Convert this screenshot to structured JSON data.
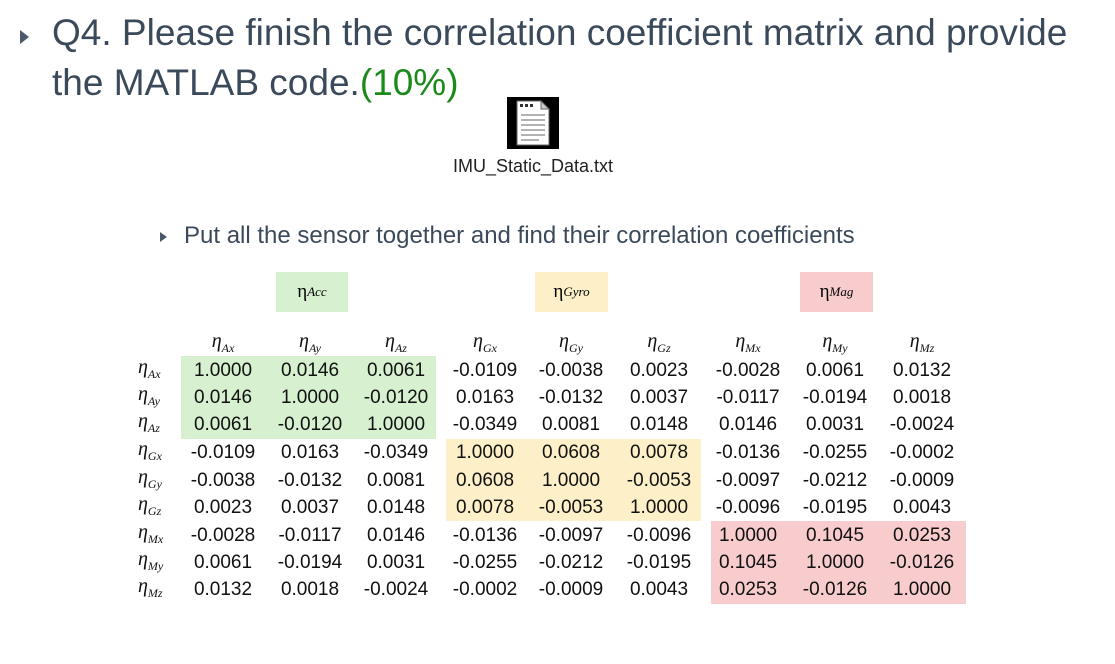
{
  "question": {
    "text": "Q4. Please finish the correlation coefficient matrix and provide the MATLAB code.",
    "points": "(10%)"
  },
  "attachment": {
    "icon": "text-file-icon",
    "filename": "IMU_Static_Data.txt"
  },
  "instruction": "Put all the sensor together and find their correlation coefficients",
  "groups": [
    {
      "symbol": "η",
      "subscript": "Acc",
      "color": "#d6f0d0"
    },
    {
      "symbol": "η",
      "subscript": "Gyro",
      "color": "#fdf0c8"
    },
    {
      "symbol": "η",
      "subscript": "Mag",
      "color": "#f8cccc"
    }
  ],
  "labels": [
    {
      "symbol": "η",
      "subscript": "Ax"
    },
    {
      "symbol": "η",
      "subscript": "Ay"
    },
    {
      "symbol": "η",
      "subscript": "Az"
    },
    {
      "symbol": "η",
      "subscript": "Gx"
    },
    {
      "symbol": "η",
      "subscript": "Gy"
    },
    {
      "symbol": "η",
      "subscript": "Gz"
    },
    {
      "symbol": "η",
      "subscript": "Mx"
    },
    {
      "symbol": "η",
      "subscript": "My"
    },
    {
      "symbol": "η",
      "subscript": "Mz"
    }
  ],
  "matrix": [
    [
      "1.0000",
      "0.0146",
      "0.0061",
      "-0.0109",
      "-0.0038",
      "0.0023",
      "-0.0028",
      "0.0061",
      "0.0132"
    ],
    [
      "0.0146",
      "1.0000",
      "-0.0120",
      "0.0163",
      "-0.0132",
      "0.0037",
      "-0.0117",
      "-0.0194",
      "0.0018"
    ],
    [
      "0.0061",
      "-0.0120",
      "1.0000",
      "-0.0349",
      "0.0081",
      "0.0148",
      "0.0146",
      "0.0031",
      "-0.0024"
    ],
    [
      "-0.0109",
      "0.0163",
      "-0.0349",
      "1.0000",
      "0.0608",
      "0.0078",
      "-0.0136",
      "-0.0255",
      "-0.0002"
    ],
    [
      "-0.0038",
      "-0.0132",
      "0.0081",
      "0.0608",
      "1.0000",
      "-0.0053",
      "-0.0097",
      "-0.0212",
      "-0.0009"
    ],
    [
      "0.0023",
      "0.0037",
      "0.0148",
      "0.0078",
      "-0.0053",
      "1.0000",
      "-0.0096",
      "-0.0195",
      "0.0043"
    ],
    [
      "-0.0028",
      "-0.0117",
      "0.0146",
      "-0.0136",
      "-0.0097",
      "-0.0096",
      "1.0000",
      "0.1045",
      "0.0253"
    ],
    [
      "0.0061",
      "-0.0194",
      "0.0031",
      "-0.0255",
      "-0.0212",
      "-0.0195",
      "0.1045",
      "1.0000",
      "-0.0126"
    ],
    [
      "0.0132",
      "0.0018",
      "-0.0024",
      "-0.0002",
      "-0.0009",
      "0.0043",
      "0.0253",
      "-0.0126",
      "1.0000"
    ]
  ]
}
